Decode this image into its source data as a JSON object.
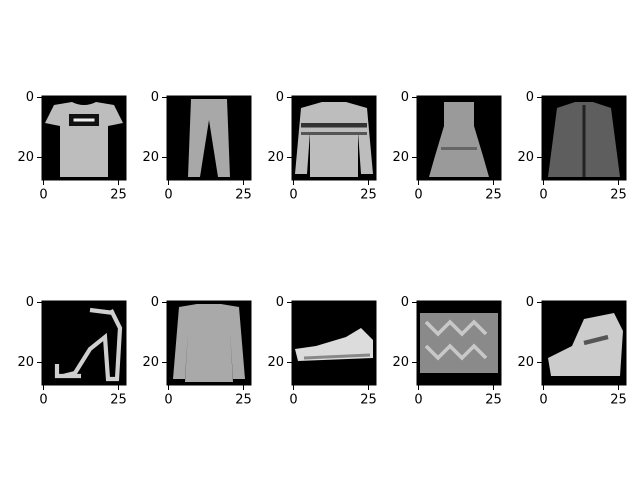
{
  "chart_data": [
    {
      "type": "image",
      "xlim": [
        -0.5,
        27.5
      ],
      "ylim": [
        27.5,
        -0.5
      ],
      "xticks": [
        0,
        25
      ],
      "yticks": [
        0,
        20
      ]
    },
    {
      "type": "image",
      "xlim": [
        -0.5,
        27.5
      ],
      "ylim": [
        27.5,
        -0.5
      ],
      "xticks": [
        0,
        25
      ],
      "yticks": [
        0,
        20
      ]
    },
    {
      "type": "image",
      "xlim": [
        -0.5,
        27.5
      ],
      "ylim": [
        27.5,
        -0.5
      ],
      "xticks": [
        0,
        25
      ],
      "yticks": [
        0,
        20
      ]
    },
    {
      "type": "image",
      "xlim": [
        -0.5,
        27.5
      ],
      "ylim": [
        27.5,
        -0.5
      ],
      "xticks": [
        0,
        25
      ],
      "yticks": [
        0,
        20
      ]
    },
    {
      "type": "image",
      "xlim": [
        -0.5,
        27.5
      ],
      "ylim": [
        27.5,
        -0.5
      ],
      "xticks": [
        0,
        25
      ],
      "yticks": [
        0,
        20
      ]
    },
    {
      "type": "image",
      "xlim": [
        -0.5,
        27.5
      ],
      "ylim": [
        27.5,
        -0.5
      ],
      "xticks": [
        0,
        25
      ],
      "yticks": [
        0,
        20
      ]
    },
    {
      "type": "image",
      "xlim": [
        -0.5,
        27.5
      ],
      "ylim": [
        27.5,
        -0.5
      ],
      "xticks": [
        0,
        25
      ],
      "yticks": [
        0,
        20
      ]
    },
    {
      "type": "image",
      "xlim": [
        -0.5,
        27.5
      ],
      "ylim": [
        27.5,
        -0.5
      ],
      "xticks": [
        0,
        25
      ],
      "yticks": [
        0,
        20
      ]
    },
    {
      "type": "image",
      "xlim": [
        -0.5,
        27.5
      ],
      "ylim": [
        27.5,
        -0.5
      ],
      "xticks": [
        0,
        25
      ],
      "yticks": [
        0,
        20
      ]
    },
    {
      "type": "image",
      "xlim": [
        -0.5,
        27.5
      ],
      "ylim": [
        27.5,
        -0.5
      ],
      "xticks": [
        0,
        25
      ],
      "yticks": [
        0,
        20
      ]
    }
  ]
}
